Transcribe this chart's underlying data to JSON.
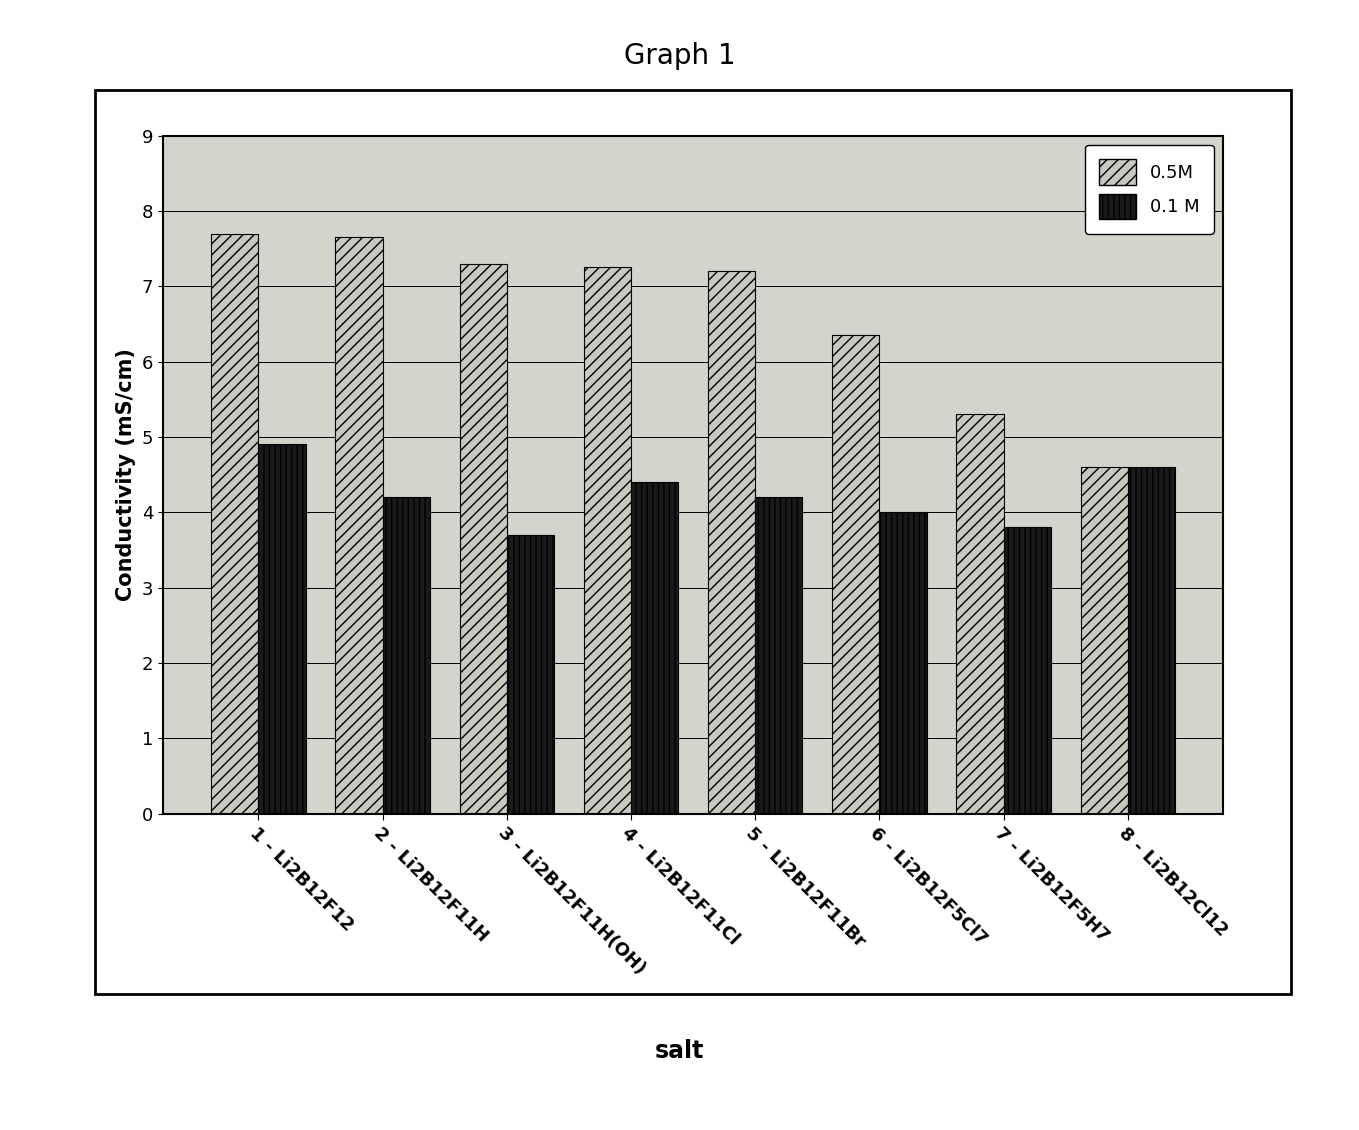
{
  "title": "Graph 1",
  "categories": [
    "1 - Li2B12F12",
    "2 - Li2B12F11H",
    "3 - Li2B12F11H(OH)",
    "4 - Li2B12F11Cl",
    "5 - Li2B12F11Br",
    "6 - Li2B12F5Cl7",
    "7 - Li2B12F5H7",
    "8 - Li2B12Cl12"
  ],
  "values_05M": [
    7.7,
    7.65,
    7.3,
    7.25,
    7.2,
    6.35,
    5.3,
    4.6
  ],
  "values_01M": [
    4.9,
    4.2,
    3.7,
    4.4,
    4.2,
    4.0,
    3.8,
    4.6
  ],
  "ylabel": "Conductivity (mS/cm)",
  "xlabel": "salt",
  "ylim": [
    0,
    9
  ],
  "yticks": [
    0,
    1,
    2,
    3,
    4,
    5,
    6,
    7,
    8,
    9
  ],
  "bar_color_05M": "#c8c8c0",
  "bar_color_01M": "#1a1a1a",
  "bar_hatch_05M": "///",
  "bar_hatch_01M": "|||",
  "legend_05M": "0.5M",
  "legend_01M": "0.1 M",
  "outer_bg": "#ffffff",
  "inner_bg": "#d4d4cc",
  "plot_area_color": "#d4d4cc",
  "title_fontsize": 20,
  "label_fontsize": 15,
  "tick_fontsize": 13,
  "legend_fontsize": 13
}
